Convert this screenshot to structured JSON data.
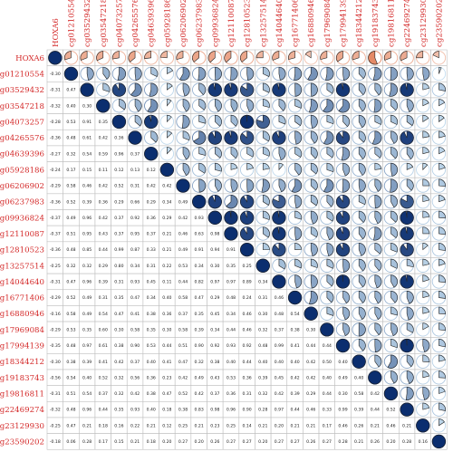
{
  "chart_data": {
    "type": "heatmap",
    "variables": [
      "HOXA6",
      "cg01210554",
      "cg03529432",
      "cg03547218",
      "cg04073257",
      "cg04265576",
      "cg04639396",
      "cg05928186",
      "cg06206902",
      "cg06237983",
      "cg09936824",
      "cg12110087",
      "cg12810523",
      "cg13257514",
      "cg14044640",
      "cg16771406",
      "cg16880946",
      "cg17969084",
      "cg17994139",
      "cg18344212",
      "cg19183743",
      "cg19816811",
      "cg22469274",
      "cg23129930",
      "cg23590202"
    ],
    "lower_triangle_coefficients": [
      [],
      [
        -0.3
      ],
      [
        -0.31,
        0.47
      ],
      [
        -0.32,
        0.4,
        0.3
      ],
      [
        -0.28,
        0.53,
        0.91,
        0.35
      ],
      [
        -0.36,
        0.48,
        0.61,
        0.42,
        0.36
      ],
      [
        -0.27,
        0.32,
        0.54,
        0.59,
        0.96,
        0.37
      ],
      [
        -0.24,
        0.17,
        0.15,
        0.11,
        0.12,
        0.13,
        0.12
      ],
      [
        -0.29,
        0.58,
        0.46,
        0.42,
        0.52,
        0.31,
        0.42,
        0.42
      ],
      [
        -0.36,
        0.52,
        0.39,
        0.36,
        0.29,
        0.66,
        0.29,
        0.34,
        0.49
      ],
      [
        -0.37,
        0.49,
        0.96,
        0.42,
        0.37,
        0.92,
        0.36,
        0.29,
        0.42,
        0.93
      ],
      [
        -0.37,
        0.51,
        0.95,
        0.43,
        0.37,
        0.95,
        0.37,
        0.21,
        0.46,
        0.63,
        0.98
      ],
      [
        -0.36,
        0.48,
        0.85,
        0.44,
        0.99,
        0.87,
        0.33,
        0.21,
        0.49,
        0.91,
        0.94,
        0.91
      ],
      [
        -0.25,
        0.32,
        0.32,
        0.29,
        0.8,
        0.34,
        0.31,
        0.22,
        0.53,
        0.34,
        0.3,
        0.35,
        0.25
      ],
      [
        -0.31,
        0.47,
        0.96,
        0.39,
        0.31,
        0.93,
        0.45,
        0.11,
        0.44,
        0.82,
        0.97,
        0.97,
        0.89,
        0.34
      ],
      [
        -0.29,
        0.52,
        0.49,
        0.31,
        0.35,
        0.47,
        0.34,
        0.4,
        0.58,
        0.47,
        0.29,
        0.48,
        0.24,
        0.31,
        0.46
      ],
      [
        -0.16,
        0.58,
        0.49,
        0.54,
        0.47,
        0.41,
        0.38,
        0.36,
        0.37,
        0.35,
        0.45,
        0.34,
        0.46,
        0.3,
        0.48,
        0.54
      ],
      [
        -0.29,
        0.53,
        0.35,
        0.6,
        0.3,
        0.58,
        0.35,
        0.3,
        0.58,
        0.39,
        0.34,
        0.44,
        0.46,
        0.32,
        0.37,
        0.38,
        0.3
      ],
      [
        -0.35,
        0.48,
        0.97,
        0.61,
        0.38,
        0.9,
        0.53,
        0.44,
        0.51,
        0.9,
        0.92,
        0.93,
        0.92,
        0.48,
        0.99,
        0.41,
        0.44,
        0.44
      ],
      [
        -0.3,
        0.38,
        0.39,
        0.41,
        0.42,
        0.37,
        0.4,
        0.41,
        0.47,
        0.32,
        0.38,
        0.4,
        0.44,
        0.4,
        0.4,
        0.4,
        0.42,
        0.5,
        0.4
      ],
      [
        -0.56,
        0.54,
        0.4,
        0.52,
        0.32,
        0.56,
        0.36,
        0.23,
        0.42,
        0.49,
        0.43,
        0.53,
        0.36,
        0.39,
        0.45,
        0.42,
        0.42,
        0.4,
        0.49,
        0.4
      ],
      [
        -0.31,
        0.51,
        0.54,
        0.37,
        0.32,
        0.42,
        0.38,
        0.47,
        0.52,
        0.42,
        0.37,
        0.36,
        0.31,
        0.32,
        0.42,
        0.39,
        0.29,
        0.44,
        0.3,
        0.58,
        0.42
      ],
      [
        -0.32,
        0.48,
        0.96,
        0.44,
        0.35,
        0.93,
        0.4,
        0.18,
        0.38,
        0.83,
        0.98,
        0.96,
        0.9,
        0.28,
        0.97,
        0.44,
        0.46,
        0.33,
        0.99,
        0.39,
        0.44,
        0.52
      ],
      [
        -0.25,
        0.47,
        0.21,
        0.18,
        0.16,
        0.22,
        0.21,
        0.12,
        0.25,
        0.21,
        0.23,
        0.25,
        0.14,
        0.21,
        0.2,
        0.21,
        0.21,
        0.17,
        0.46,
        0.26,
        0.21,
        0.46,
        0.21
      ],
      [
        -0.18,
        0.06,
        0.28,
        0.17,
        0.15,
        0.21,
        0.18,
        0.2,
        0.27,
        0.2,
        0.26,
        0.27,
        0.27,
        0.2,
        0.27,
        0.27,
        0.26,
        0.27,
        0.28,
        0.21,
        0.26,
        0.2,
        0.28,
        0.16
      ]
    ],
    "upper_style": "pie",
    "lower_style": "number",
    "color_scale": {
      "negative": "#e2805a",
      "positive_light": "#c9e1f2",
      "positive_dark": "#0b2e6f"
    },
    "grid": true
  }
}
